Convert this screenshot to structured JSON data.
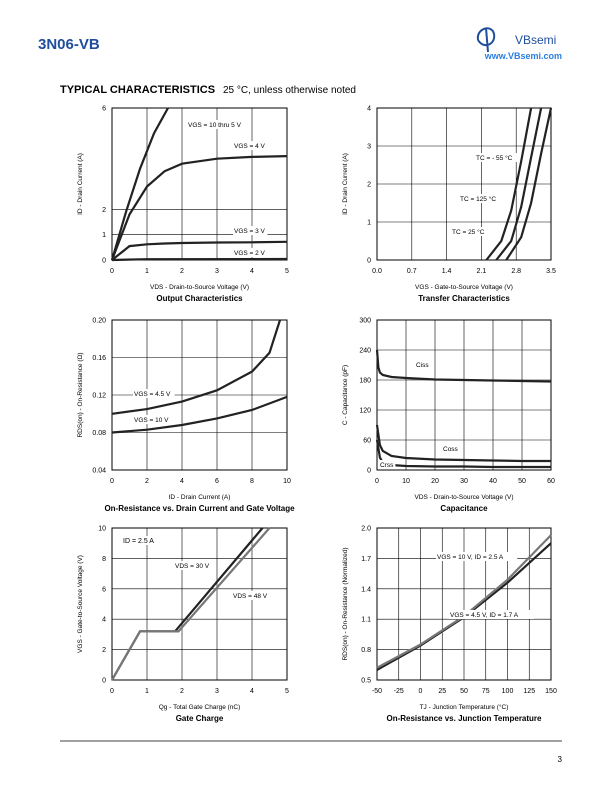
{
  "header": {
    "part": "3N06-VB",
    "brand": "VBsemi",
    "website": "www.VBsemi.com"
  },
  "section": {
    "title": "TYPICAL CHARACTERISTICS",
    "note": "25 °C, unless otherwise noted"
  },
  "chart_data": [
    {
      "type": "line",
      "title": "Output Characteristics",
      "xlabel": "VDS - Drain-to-Source Voltage (V)",
      "ylabel": "ID - Drain Current (A)",
      "xlim": [
        0,
        5
      ],
      "xticks": [
        0,
        1,
        2,
        3,
        4,
        5
      ],
      "ylim": [
        0,
        6
      ],
      "yticks": [
        0,
        1,
        2,
        6
      ],
      "grid": true,
      "series": [
        {
          "name": "VGS = 10 thru 5 V",
          "color": "#222222",
          "x": [
            0,
            0.4,
            0.8,
            1.2,
            1.6
          ],
          "values": [
            0,
            1.9,
            3.6,
            5,
            6
          ]
        },
        {
          "name": "VGS = 4 V",
          "color": "#222222",
          "x": [
            0,
            0.5,
            1,
            1.5,
            2,
            3,
            4,
            5
          ],
          "values": [
            0,
            1.8,
            2.9,
            3.5,
            3.8,
            4,
            4.07,
            4.1
          ]
        },
        {
          "name": "VGS = 3 V",
          "color": "#222222",
          "x": [
            0,
            0.5,
            1,
            1.5,
            2,
            3,
            4,
            5
          ],
          "values": [
            0,
            0.55,
            0.62,
            0.65,
            0.67,
            0.69,
            0.7,
            0.72
          ]
        },
        {
          "name": "VGS = 2 V",
          "color": "#222222",
          "x": [
            0,
            1,
            5
          ],
          "values": [
            0,
            0.03,
            0.04
          ]
        }
      ]
    },
    {
      "type": "line",
      "title": "Transfer Characteristics",
      "xlabel": "VGS - Gate-to-Source Voltage (V)",
      "ylabel": "ID - Drain Current (A)",
      "xlim": [
        0,
        3.5
      ],
      "xticks": [
        {
          "value": 0,
          "label": "0.0"
        },
        0.7,
        1.4,
        2.1,
        2.8,
        3.5
      ],
      "ylim": [
        0,
        4
      ],
      "yticks": [
        0,
        1,
        2,
        3,
        4
      ],
      "grid": true,
      "series": [
        {
          "name": "TC = - 55 °C",
          "color": "#222222",
          "x": [
            2.6,
            2.9,
            3.1,
            3.3,
            3.5
          ],
          "values": [
            0,
            0.6,
            1.5,
            2.8,
            4
          ]
        },
        {
          "name": "TC = 125 °C",
          "color": "#222222",
          "x": [
            2.2,
            2.5,
            2.7,
            2.9,
            3.1
          ],
          "values": [
            0,
            0.5,
            1.3,
            2.6,
            4
          ]
        },
        {
          "name": "TC = 25 °C",
          "color": "#222222",
          "x": [
            2.4,
            2.7,
            2.9,
            3.1,
            3.3
          ],
          "values": [
            0,
            0.5,
            1.4,
            2.7,
            4
          ]
        }
      ]
    },
    {
      "type": "line",
      "title": "On-Resistance vs. Drain Current and Gate Voltage",
      "xlabel": "ID - Drain Current (A)",
      "ylabel": "RDS(on) - On-Resistance (Ω)",
      "xlim": [
        0,
        10
      ],
      "xticks": [
        0,
        2,
        4,
        6,
        8,
        10
      ],
      "ylim": [
        0.04,
        0.2
      ],
      "yticks": [
        0.04,
        0.08,
        0.12,
        0.16,
        {
          "value": 0.2,
          "label": "0.20"
        }
      ],
      "grid": true,
      "series": [
        {
          "name": "VGS = 4.5 V",
          "color": "#222222",
          "x": [
            0,
            2,
            4,
            6,
            8,
            9,
            9.6
          ],
          "values": [
            0.1,
            0.105,
            0.113,
            0.125,
            0.145,
            0.165,
            0.2
          ]
        },
        {
          "name": "VGS = 10 V",
          "color": "#222222",
          "x": [
            0,
            2,
            4,
            6,
            8,
            10
          ],
          "values": [
            0.08,
            0.083,
            0.088,
            0.095,
            0.104,
            0.118
          ]
        }
      ]
    },
    {
      "type": "line",
      "title": "Capacitance",
      "xlabel": "VDS - Drain-to-Source Voltage (V)",
      "ylabel": "C - Capacitance (pF)",
      "xlim": [
        0,
        60
      ],
      "xticks": [
        0,
        10,
        20,
        30,
        40,
        50,
        60
      ],
      "ylim": [
        0,
        300
      ],
      "yticks": [
        0,
        60,
        120,
        180,
        240,
        300
      ],
      "grid": true,
      "series": [
        {
          "name": "Ciss",
          "color": "#222222",
          "x": [
            0,
            0.5,
            1,
            2,
            5,
            10,
            20,
            30,
            40,
            50,
            60
          ],
          "values": [
            240,
            205,
            195,
            190,
            186,
            184,
            181,
            180,
            179,
            178,
            177
          ]
        },
        {
          "name": "Coss",
          "color": "#222222",
          "x": [
            0,
            1,
            2,
            5,
            10,
            20,
            30,
            40,
            50,
            60
          ],
          "values": [
            90,
            50,
            38,
            28,
            24,
            21,
            20,
            19,
            18,
            18
          ]
        },
        {
          "name": "Crss",
          "color": "#222222",
          "x": [
            0,
            1,
            2,
            5,
            10,
            20,
            30,
            40,
            50,
            60
          ],
          "values": [
            60,
            25,
            15,
            10,
            8,
            7,
            7,
            6,
            6,
            6
          ]
        }
      ]
    },
    {
      "type": "line",
      "title": "Gate Charge",
      "xlabel": "Qg - Total Gate Charge (nC)",
      "ylabel": "VGS - Gate-to-Source Voltage (V)",
      "xlim": [
        0,
        5
      ],
      "xticks": [
        0,
        1,
        2,
        3,
        4,
        5
      ],
      "ylim": [
        0,
        10
      ],
      "yticks": [
        0,
        2,
        4,
        6,
        8,
        10
      ],
      "grid": true,
      "annotations": [
        "ID = 2.5 A"
      ],
      "series": [
        {
          "name": "VDS = 30 V",
          "color": "#222222",
          "x": [
            0,
            0.8,
            1.8,
            4.3
          ],
          "values": [
            0,
            3.2,
            3.2,
            10
          ]
        },
        {
          "name": "VDS = 48 V",
          "color": "#777777",
          "x": [
            0,
            0.8,
            1.9,
            4.5
          ],
          "values": [
            0,
            3.2,
            3.2,
            10
          ]
        }
      ]
    },
    {
      "type": "line",
      "title": "On-Resistance vs. Junction Temperature",
      "xlabel": "TJ - Junction Temperature (°C)",
      "ylabel": "RDS(on) - On-Resistance (Normalized)",
      "xlim": [
        -50,
        150
      ],
      "xticks": [
        -50,
        -25,
        0,
        25,
        50,
        75,
        100,
        125,
        150
      ],
      "ylim": [
        0.5,
        2
      ],
      "yticks": [
        0.5,
        0.8,
        1.1,
        1.4,
        1.7,
        {
          "value": 2,
          "label": "2.0"
        }
      ],
      "grid": true,
      "series": [
        {
          "name": "VGS = 10 V, ID = 2.5 A",
          "color": "#222222",
          "x": [
            -50,
            0,
            50,
            100,
            150
          ],
          "values": [
            0.6,
            0.84,
            1.12,
            1.46,
            1.85
          ]
        },
        {
          "name": "VGS = 4.5 V, ID = 1.7 A",
          "color": "#777777",
          "x": [
            -50,
            0,
            50,
            100,
            150
          ],
          "values": [
            0.62,
            0.85,
            1.13,
            1.49,
            1.93
          ]
        }
      ]
    }
  ],
  "footer": {
    "page": "3"
  }
}
